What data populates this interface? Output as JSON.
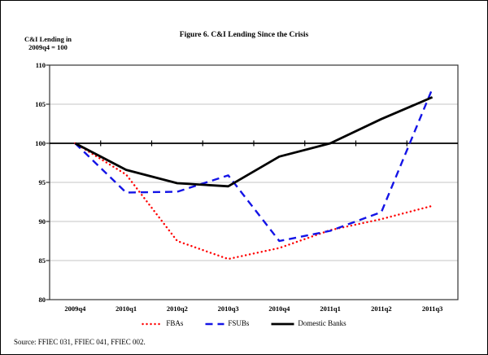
{
  "title": "Figure 6. C&I Lending Since the Crisis",
  "y_axis_header": {
    "line1": "C&I Lending in",
    "line2": "2009q4 = 100"
  },
  "source_note": "Source: FFIEC 031, FFIEC 041, FFIEC 002.",
  "colors": {
    "fbas": "#FF0000",
    "fsubs": "#1414E6",
    "domestic_banks": "#000000",
    "gridline": "#C6C6C6",
    "frame": "#333333",
    "baseline": "#000000"
  },
  "chart_data": {
    "type": "line",
    "title": "Figure 6. C&I Lending Since the Crisis",
    "ylabel": "C&I Lending in 2009q4 = 100",
    "xlabel": "",
    "categories": [
      "2009q4",
      "2010q1",
      "2010q2",
      "2010q3",
      "2010q4",
      "2011q1",
      "2011q2",
      "2011q3"
    ],
    "series": [
      {
        "name": "FBAs",
        "style": "dotted",
        "color": "#FF0000",
        "values": [
          100,
          96.0,
          87.5,
          85.2,
          86.6,
          88.9,
          90.3,
          92.0
        ]
      },
      {
        "name": "FSUBs",
        "style": "dashed",
        "color": "#1414E6",
        "values": [
          100,
          93.7,
          93.8,
          95.9,
          87.5,
          88.8,
          91.2,
          107.0
        ]
      },
      {
        "name": "Domestic Banks",
        "style": "solid",
        "color": "#000000",
        "values": [
          100,
          96.6,
          94.9,
          94.5,
          98.3,
          100.0,
          103.1,
          105.9
        ]
      }
    ],
    "ylim": [
      80,
      110
    ],
    "ytick_interval": 5,
    "yticks": [
      80,
      85,
      90,
      95,
      100,
      105,
      110
    ],
    "baseline": 100,
    "grid": "horizontal",
    "legend_position": "bottom"
  }
}
